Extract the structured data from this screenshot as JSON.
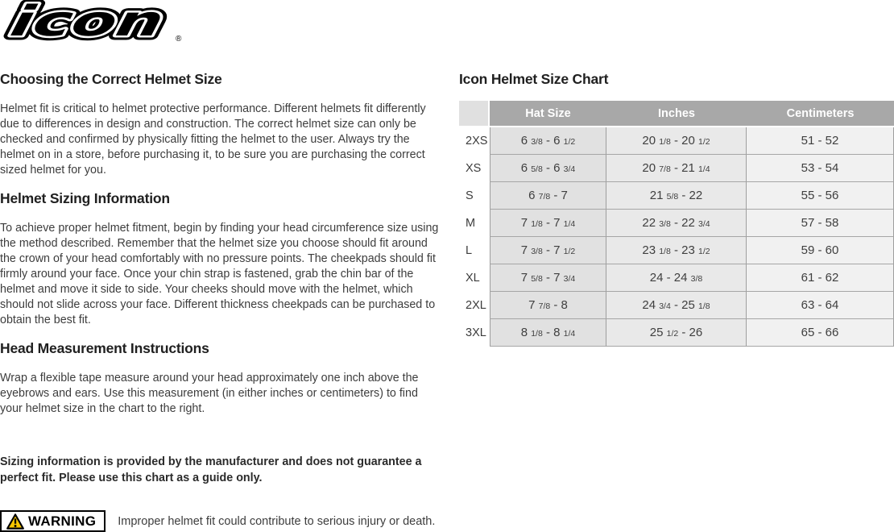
{
  "logo": {
    "text": "icon",
    "registered": "®"
  },
  "left": {
    "sections": [
      {
        "heading": "Choosing the Correct Helmet Size",
        "body": "Helmet fit is critical to helmet protective performance. Different helmets fit differently due to differences in design and construction. The correct helmet size can only be checked and confirmed by physically fitting the helmet to the user. Always try the helmet on in a store, before purchasing it, to be sure you are purchasing the correct sized helmet for you."
      },
      {
        "heading": "Helmet Sizing Information",
        "body": "To achieve proper helmet fitment, begin by finding your head circumference size using the method described. Remember that the helmet size you choose should fit around the crown of your head comfortably with no pressure points. The cheekpads should fit firmly around your face. Once your chin strap is fastened, grab the chin bar of the helmet and move it side to side. Your cheeks should move with the helmet, which should not slide across your face. Different thickness cheekpads can be purchased to obtain the best fit."
      },
      {
        "heading": "Head Measurement Instructions",
        "body": "Wrap a flexible tape measure around your head approximately one inch above the eyebrows and ears. Use this measurement (in either inches or centimeters) to find your helmet size in the chart to the right."
      }
    ],
    "disclaimer": "Sizing information is provided by the manufacturer and does not guarantee a perfect fit. Please use this chart as a guide only.",
    "warning": {
      "icon": "warning-triangle-icon",
      "label": "WARNING",
      "text": "Improper helmet fit could contribute to serious injury or death."
    }
  },
  "right": {
    "heading": "Icon Helmet Size Chart",
    "table": {
      "columns": [
        "",
        "Hat Size",
        "Inches",
        "Centimeters"
      ],
      "rows": [
        {
          "size": "2XS",
          "hat": "6 3/8 - 6 1/2",
          "inches": "20 1/8 - 20 1/2",
          "cm": "51 - 52"
        },
        {
          "size": "XS",
          "hat": "6 5/8 - 6 3/4",
          "inches": "20 7/8 - 21 1/4",
          "cm": "53 - 54"
        },
        {
          "size": "S",
          "hat": "6 7/8 - 7",
          "inches": "21 5/8 - 22",
          "cm": "55 - 56"
        },
        {
          "size": "M",
          "hat": "7 1/8 - 7 1/4",
          "inches": "22 3/8 - 22 3/4",
          "cm": "57 - 58"
        },
        {
          "size": "L",
          "hat": "7 3/8 - 7 1/2",
          "inches": "23 1/8 - 23 1/2",
          "cm": "59 - 60"
        },
        {
          "size": "XL",
          "hat": "7 5/8 - 7 3/4",
          "inches": "24 - 24 3/8",
          "cm": "61 - 62"
        },
        {
          "size": "2XL",
          "hat": "7 7/8 - 8",
          "inches": "24 3/4 - 25 1/8",
          "cm": "63 - 64"
        },
        {
          "size": "3XL",
          "hat": "8 1/8 - 8 1/4",
          "inches": "25 1/2 - 26",
          "cm": "65 - 66"
        }
      ]
    }
  },
  "colors": {
    "table_header_bg": "#a8a8a8",
    "table_corner_bg": "#e0e0e0",
    "hat_col_bg": "#e1e1e1",
    "inches_col_bg": "#e9e9e9",
    "cm_col_bg": "#f1f1f1",
    "warning_yellow": "#f7c600",
    "body_text": "#3d3d3d"
  }
}
